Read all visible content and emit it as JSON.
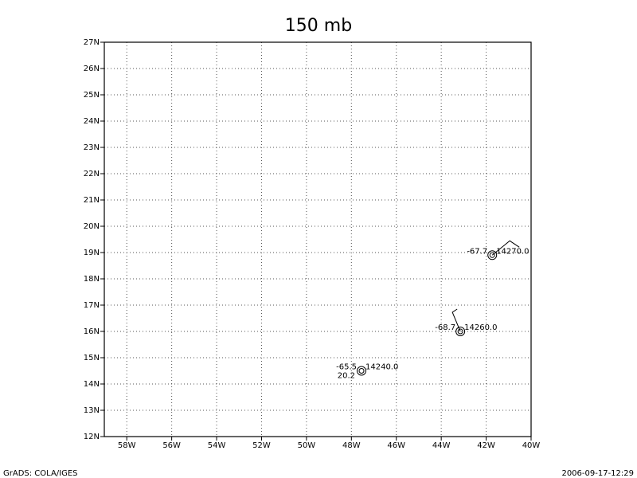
{
  "title": "150 mb",
  "map": {
    "xlim": [
      -59,
      -40
    ],
    "ylim": [
      12,
      27
    ],
    "xticks": [
      {
        "value": -58,
        "label": "58W"
      },
      {
        "value": -56,
        "label": "56W"
      },
      {
        "value": -54,
        "label": "54W"
      },
      {
        "value": -52,
        "label": "52W"
      },
      {
        "value": -50,
        "label": "50W"
      },
      {
        "value": -48,
        "label": "48W"
      },
      {
        "value": -46,
        "label": "46W"
      },
      {
        "value": -44,
        "label": "44W"
      },
      {
        "value": -42,
        "label": "42W"
      },
      {
        "value": -40,
        "label": "40W"
      }
    ],
    "yticks": [
      {
        "value": 12,
        "label": "12N"
      },
      {
        "value": 13,
        "label": "13N"
      },
      {
        "value": 14,
        "label": "14N"
      },
      {
        "value": 15,
        "label": "15N"
      },
      {
        "value": 16,
        "label": "16N"
      },
      {
        "value": 17,
        "label": "17N"
      },
      {
        "value": 18,
        "label": "18N"
      },
      {
        "value": 19,
        "label": "19N"
      },
      {
        "value": 20,
        "label": "20N"
      },
      {
        "value": 21,
        "label": "21N"
      },
      {
        "value": 22,
        "label": "22N"
      },
      {
        "value": 23,
        "label": "23N"
      },
      {
        "value": 24,
        "label": "24N"
      },
      {
        "value": 25,
        "label": "25N"
      },
      {
        "value": 26,
        "label": "26N"
      },
      {
        "value": 27,
        "label": "27N"
      }
    ],
    "grid": true,
    "stations": [
      {
        "lon": -41.73,
        "lat": 18.9,
        "temperature": "-67.7",
        "height": "14270.0"
      },
      {
        "lon": -43.15,
        "lat": 16.0,
        "temperature": "-68.7",
        "height": "14260.0"
      },
      {
        "lon": -47.55,
        "lat": 14.5,
        "temperature": "-65.5",
        "height": "14240.0",
        "dewpoint": "20.2"
      }
    ]
  },
  "footer": {
    "left": "GrADS: COLA/IGES",
    "right": "2006-09-17-12:29"
  }
}
